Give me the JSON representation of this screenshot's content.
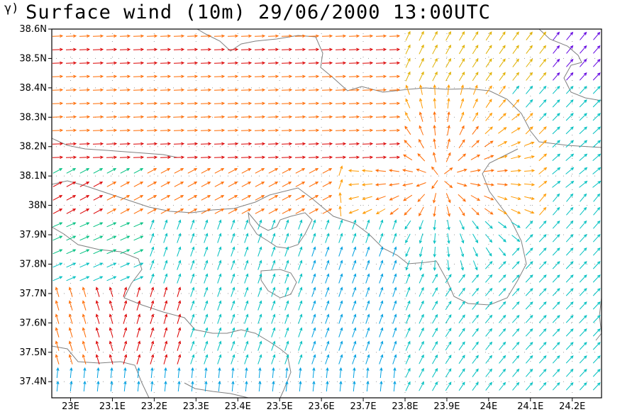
{
  "title": {
    "panel_tag": "γ)",
    "text": "Surface wind (10m) 29/06/2000 13:00UTC"
  },
  "map": {
    "lon_range": [
      22.955,
      24.27
    ],
    "lat_range": [
      37.345,
      38.6
    ],
    "lat_ticks": [
      "38.6N",
      "38.5N",
      "38.4N",
      "38.3N",
      "38.2N",
      "38.1N",
      "38N",
      "37.9N",
      "37.8N",
      "37.7N",
      "37.6N",
      "37.5N",
      "37.4N"
    ],
    "lat_tick_values": [
      38.6,
      38.5,
      38.4,
      38.3,
      38.2,
      38.1,
      38.0,
      37.9,
      37.8,
      37.7,
      37.6,
      37.5,
      37.4
    ],
    "lon_ticks": [
      "23E",
      "23.1E",
      "23.2E",
      "23.3E",
      "23.4E",
      "23.5E",
      "23.6E",
      "23.7E",
      "23.8E",
      "23.9E",
      "24E",
      "24.1E",
      "24.2E"
    ],
    "lon_tick_values": [
      23.0,
      23.1,
      23.2,
      23.3,
      23.4,
      23.5,
      23.6,
      23.7,
      23.8,
      23.9,
      24.0,
      24.1,
      24.2
    ],
    "grid_dots": true,
    "frame_color": "#000000",
    "coastline_color": "#808080",
    "field": "10m wind vectors colored by speed (rainbow palette)",
    "palette": [
      "#dc0000",
      "#ff6a00",
      "#ff9a00",
      "#e0b000",
      "#b8c800",
      "#50c000",
      "#00c080",
      "#00c0c0",
      "#00a0e0",
      "#0040ff",
      "#6000e0",
      "#9000c0"
    ]
  }
}
